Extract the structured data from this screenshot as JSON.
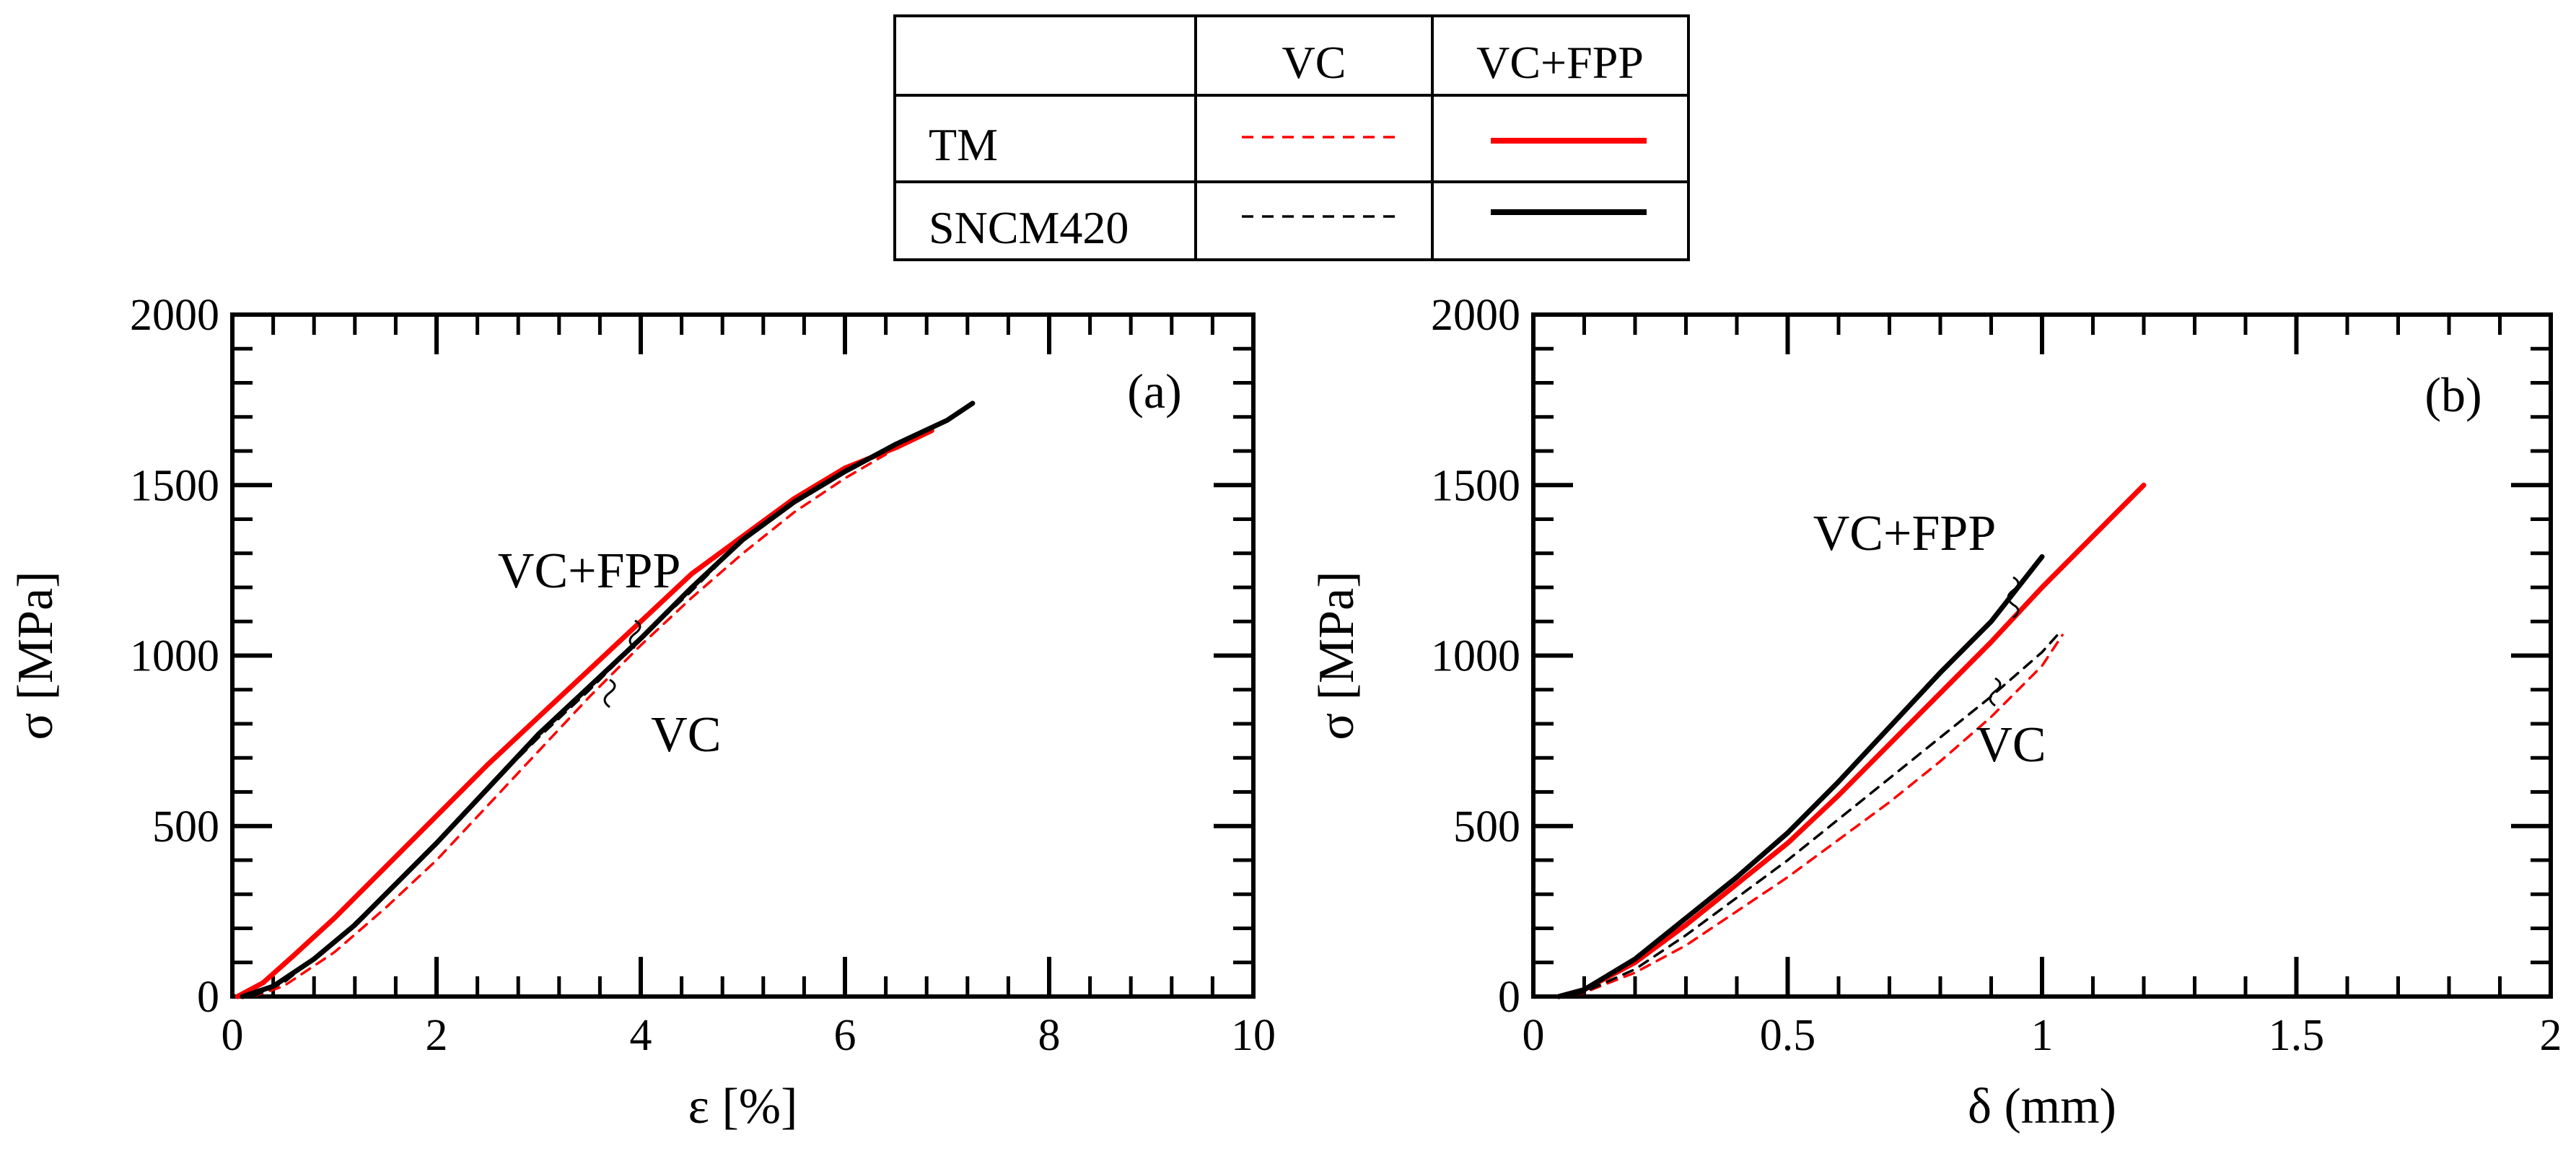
{
  "legend": {
    "col_headers": [
      "VC",
      "VC+FPP"
    ],
    "rows": [
      {
        "label": "TM",
        "color": "#ff0000"
      },
      {
        "label": "SNCM420",
        "color": "#000000"
      }
    ],
    "vc_style": "dashed",
    "vcfpp_style": "solid"
  },
  "chart_data": [
    {
      "type": "line",
      "panel_label": "(a)",
      "xlabel": "ε [%]",
      "ylabel": "σ [MPa]",
      "xlim": [
        0,
        10
      ],
      "ylim": [
        0,
        2000
      ],
      "xticks": [
        0,
        2,
        4,
        6,
        8,
        10
      ],
      "yticks": [
        0,
        500,
        1000,
        1500,
        2000
      ],
      "xticks_minor_step": 0.4,
      "yticks_minor_step": 100,
      "annotations": [
        {
          "text": "VC+FPP",
          "x": 2.6,
          "y": 1200
        },
        {
          "text": "VC",
          "x": 4.1,
          "y": 720
        }
      ],
      "series": [
        {
          "name": "TM VC+FPP",
          "color": "#ff0000",
          "style": "solid",
          "x": [
            0.05,
            0.3,
            0.6,
            1.0,
            1.5,
            2.0,
            2.5,
            3.0,
            3.5,
            4.0,
            4.5,
            5.0,
            5.5,
            6.0,
            6.5,
            6.85
          ],
          "y": [
            0,
            40,
            120,
            230,
            380,
            530,
            680,
            820,
            960,
            1100,
            1240,
            1350,
            1460,
            1550,
            1610,
            1660
          ]
        },
        {
          "name": "SNCM420 VC+FPP",
          "color": "#000000",
          "style": "solid",
          "x": [
            0.1,
            0.4,
            0.8,
            1.2,
            1.6,
            2.0,
            2.5,
            3.0,
            3.5,
            4.0,
            4.5,
            5.0,
            5.5,
            6.0,
            6.5,
            7.0,
            7.25
          ],
          "y": [
            0,
            30,
            110,
            210,
            330,
            450,
            610,
            770,
            910,
            1050,
            1200,
            1340,
            1450,
            1540,
            1620,
            1690,
            1740
          ]
        },
        {
          "name": "TM VC",
          "color": "#ff0000",
          "style": "dashed",
          "x": [
            0.2,
            0.5,
            1.0,
            1.5,
            2.0,
            2.5,
            3.0,
            3.5,
            4.0,
            4.5,
            5.0,
            5.5,
            6.0,
            6.4
          ],
          "y": [
            0,
            30,
            130,
            260,
            400,
            560,
            720,
            880,
            1030,
            1170,
            1300,
            1420,
            1520,
            1590
          ]
        },
        {
          "name": "SNCM420 VC",
          "color": "#000000",
          "style": "dashed",
          "x": [
            0.2,
            0.5,
            1.0,
            1.5,
            2.0,
            2.5,
            3.0,
            3.5,
            4.0,
            4.5,
            4.9
          ],
          "y": [
            0,
            40,
            160,
            300,
            450,
            610,
            760,
            900,
            1050,
            1190,
            1310
          ]
        }
      ]
    },
    {
      "type": "line",
      "panel_label": "(b)",
      "xlabel": "δ (mm)",
      "ylabel": "σ [MPa]",
      "xlim": [
        0,
        2
      ],
      "ylim": [
        0,
        2000
      ],
      "xticks": [
        0,
        0.5,
        1,
        1.5,
        2
      ],
      "yticks": [
        0,
        500,
        1000,
        1500,
        2000
      ],
      "xtick_labels": [
        "0",
        "0.5",
        "1",
        "1.5",
        "2"
      ],
      "xticks_minor_step": 0.1,
      "yticks_minor_step": 100,
      "annotations": [
        {
          "text": "VC+FPP",
          "x": 0.55,
          "y": 1310
        },
        {
          "text": "VC",
          "x": 0.87,
          "y": 690
        }
      ],
      "series": [
        {
          "name": "TM VC+FPP",
          "color": "#ff0000",
          "style": "solid",
          "x": [
            0.05,
            0.1,
            0.2,
            0.3,
            0.4,
            0.5,
            0.6,
            0.7,
            0.8,
            0.9,
            1.0,
            1.1,
            1.2
          ],
          "y": [
            0,
            20,
            100,
            210,
            330,
            450,
            590,
            740,
            890,
            1040,
            1200,
            1350,
            1500
          ]
        },
        {
          "name": "SNCM420 VC+FPP",
          "color": "#000000",
          "style": "solid",
          "x": [
            0.05,
            0.1,
            0.2,
            0.3,
            0.4,
            0.5,
            0.6,
            0.7,
            0.8,
            0.9,
            1.0
          ],
          "y": [
            0,
            20,
            110,
            230,
            350,
            480,
            630,
            790,
            950,
            1100,
            1290
          ]
        },
        {
          "name": "TM VC",
          "color": "#ff0000",
          "style": "dashed",
          "x": [
            0.08,
            0.2,
            0.3,
            0.4,
            0.5,
            0.6,
            0.7,
            0.8,
            0.9,
            1.0,
            1.04
          ],
          "y": [
            0,
            70,
            150,
            250,
            350,
            460,
            570,
            690,
            820,
            970,
            1060
          ]
        },
        {
          "name": "SNCM420 VC",
          "color": "#000000",
          "style": "dashed",
          "x": [
            0.08,
            0.2,
            0.3,
            0.4,
            0.5,
            0.6,
            0.7,
            0.8,
            0.9,
            1.0,
            1.03
          ],
          "y": [
            0,
            80,
            180,
            290,
            400,
            520,
            640,
            760,
            880,
            1010,
            1060
          ]
        }
      ]
    }
  ]
}
